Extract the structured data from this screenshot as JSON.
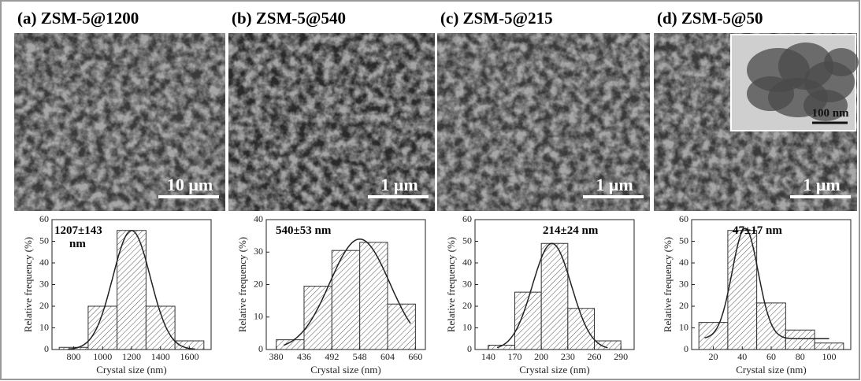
{
  "panels": [
    {
      "title": "(a) ZSM-5@1200",
      "scale_bar": "10 μm"
    },
    {
      "title": "(b) ZSM-5@540",
      "scale_bar": "1 μm"
    },
    {
      "title": "(c) ZSM-5@215",
      "scale_bar": "1 μm"
    },
    {
      "title": "(d) ZSM-5@50",
      "scale_bar": "1 μm",
      "inset_scale_bar": "100 nm"
    }
  ],
  "chart_data": [
    {
      "type": "histogram",
      "bins": [
        700,
        900,
        1100,
        1300,
        1500,
        1700
      ],
      "values": [
        1,
        20,
        55,
        20,
        4
      ],
      "xlim": [
        650,
        1750
      ],
      "xticks": [
        800,
        1000,
        1200,
        1400,
        1600
      ],
      "ylim": [
        0,
        60
      ],
      "yticks": [
        0,
        10,
        20,
        30,
        40,
        50,
        60
      ],
      "x_label": "Crystal size (nm)",
      "y_label": "Relative frequency (%)",
      "annotation": [
        "1207±143",
        "nm"
      ],
      "fit": {
        "center": 1200,
        "width": 130,
        "peak": 55,
        "baseline": 0,
        "xrange": [
          760,
          1640
        ]
      }
    },
    {
      "type": "histogram",
      "bins": [
        380,
        436,
        492,
        548,
        604,
        660
      ],
      "values": [
        3,
        19.5,
        30.5,
        33,
        14
      ],
      "xlim": [
        360,
        680
      ],
      "xticks": [
        380,
        436,
        492,
        548,
        604,
        660
      ],
      "ylim": [
        0,
        40
      ],
      "yticks": [
        0,
        10,
        20,
        30,
        40
      ],
      "x_label": "Crystal size (nm)",
      "y_label": "Relative frequency (%)",
      "annotation": [
        "540±53 nm"
      ],
      "fit": {
        "center": 548,
        "width": 60,
        "peak": 34,
        "baseline": 0,
        "xrange": [
          395,
          650
        ]
      }
    },
    {
      "type": "histogram",
      "bins": [
        140,
        170,
        200,
        230,
        260,
        290
      ],
      "values": [
        2,
        26.5,
        49,
        19,
        4
      ],
      "xlim": [
        125,
        305
      ],
      "xticks": [
        140,
        170,
        200,
        230,
        260,
        290
      ],
      "ylim": [
        0,
        60
      ],
      "yticks": [
        0,
        10,
        20,
        30,
        40,
        50,
        60
      ],
      "x_label": "Crystal size (nm)",
      "y_label": "Relative frequency (%)",
      "annotation": [
        "214±24 nm"
      ],
      "fit": {
        "center": 212,
        "width": 22,
        "peak": 49,
        "baseline": 0,
        "xrange": [
          150,
          275
        ]
      }
    },
    {
      "type": "histogram",
      "bins": [
        10,
        30,
        50,
        70,
        90,
        110
      ],
      "values": [
        12.5,
        55,
        21.5,
        9,
        3
      ],
      "xlim": [
        5,
        115
      ],
      "xticks": [
        20,
        40,
        60,
        80,
        100
      ],
      "ylim": [
        0,
        60
      ],
      "yticks": [
        0,
        10,
        20,
        30,
        40,
        50,
        60
      ],
      "x_label": "Crystal size (nm)",
      "y_label": "Relative frequency (%)",
      "annotation": [
        "47±17 nm"
      ],
      "fit": {
        "center": 42,
        "width": 9,
        "peak": 56,
        "baseline": 5,
        "xrange": [
          14,
          100
        ]
      }
    }
  ]
}
